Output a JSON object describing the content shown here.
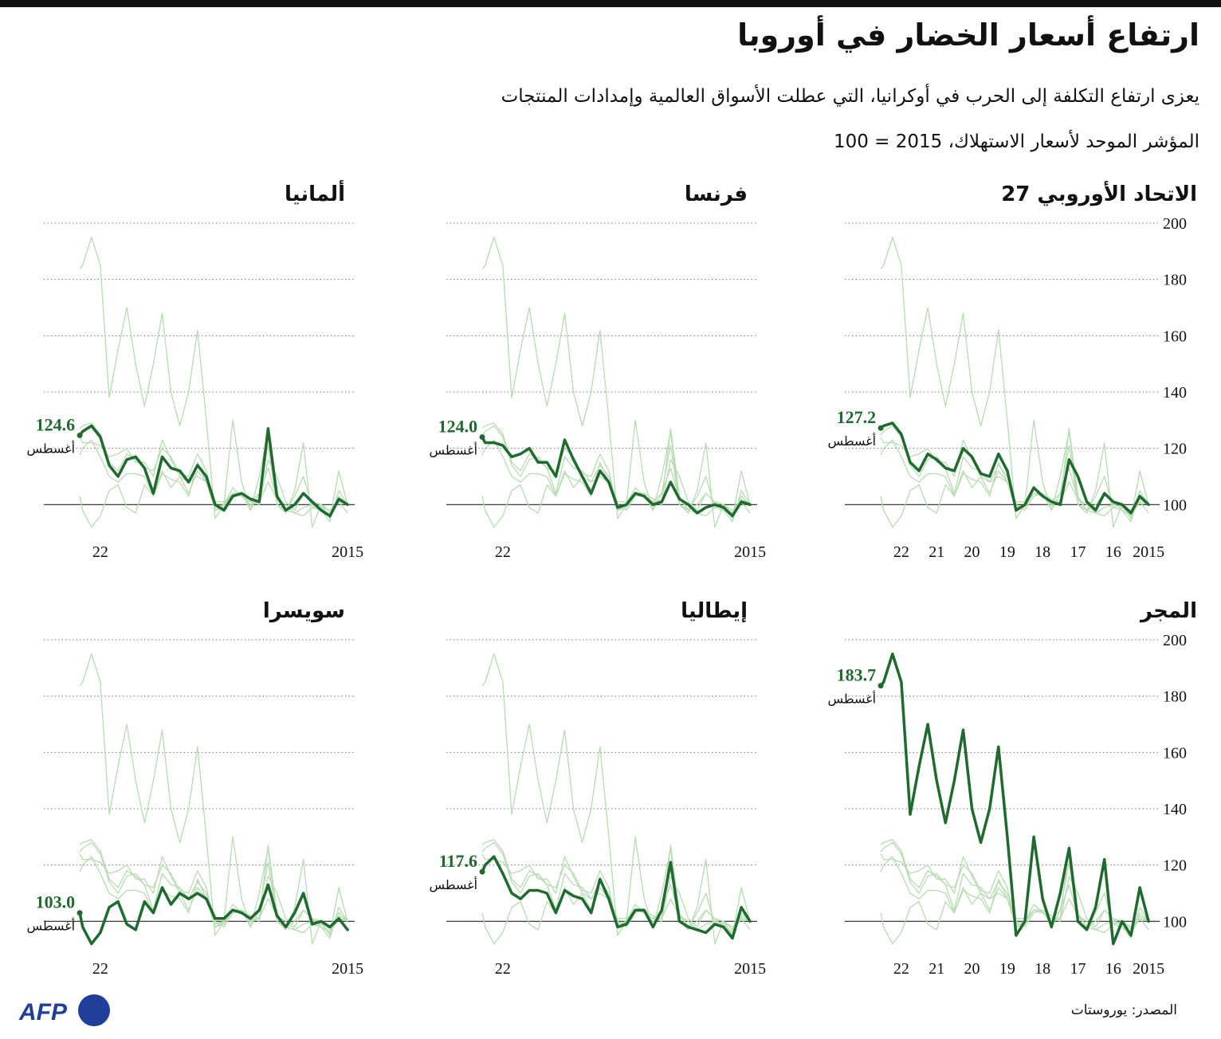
{
  "title": "ارتفاع أسعار الخضار في أوروبا",
  "subtitle": "يعزى ارتفاع التكلفة إلى الحرب في أوكرانيا، التي عطلت الأسواق العالمية وإمدادات المنتجات",
  "note": "المؤشر الموحد لأسعار الاستهلاك، 2015 = 100",
  "source": "المصدر: يوروستات",
  "logo": "AFP",
  "chart_data": [
    {
      "type": "line",
      "title": "الاتحاد الأوروبي 27",
      "color": "#1f6b2f",
      "context_color": "#b7dcb2",
      "x": [
        2015,
        2015.25,
        2015.5,
        2015.75,
        2016,
        2016.25,
        2016.5,
        2016.75,
        2017,
        2017.25,
        2017.5,
        2017.75,
        2018,
        2018.25,
        2018.5,
        2018.75,
        2019,
        2019.25,
        2019.5,
        2019.75,
        2020,
        2020.25,
        2020.5,
        2020.75,
        2021,
        2021.25,
        2021.5,
        2021.75,
        2022,
        2022.25,
        2022.5,
        2022.583
      ],
      "values": [
        100,
        103,
        97,
        100,
        101,
        104,
        98,
        101,
        110,
        116,
        100,
        101,
        103,
        106,
        100,
        98,
        112,
        118,
        110,
        111,
        117,
        120,
        112,
        113,
        116,
        118,
        112,
        115,
        125,
        129,
        128,
        127.2
      ],
      "end_label": "127.2",
      "end_month": "أغسطس",
      "xlim": [
        2014.8,
        2023.6
      ],
      "ylim": [
        80,
        200
      ],
      "yticks": [
        100,
        120,
        140,
        160,
        180,
        200
      ],
      "show_yticks": true,
      "xticks": [
        2015,
        {
          "value": 2016,
          "label": "16"
        },
        {
          "value": 2017,
          "label": "17"
        },
        {
          "value": 2018,
          "label": "18"
        },
        {
          "value": 2019,
          "label": "19"
        },
        {
          "value": 2020,
          "label": "20"
        },
        {
          "value": 2021,
          "label": "21"
        },
        {
          "value": 2022,
          "label": "22"
        }
      ]
    },
    {
      "type": "line",
      "title": "فرنسا",
      "color": "#1f6b2f",
      "context_color": "#b7dcb2",
      "x": [
        2015,
        2015.25,
        2015.5,
        2015.75,
        2016,
        2016.25,
        2016.5,
        2016.75,
        2017,
        2017.25,
        2017.5,
        2017.75,
        2018,
        2018.25,
        2018.5,
        2018.75,
        2019,
        2019.25,
        2019.5,
        2019.75,
        2020,
        2020.25,
        2020.5,
        2020.75,
        2021,
        2021.25,
        2021.5,
        2021.75,
        2022,
        2022.25,
        2022.5,
        2022.583
      ],
      "values": [
        100,
        101,
        96,
        99,
        100,
        99,
        97,
        100,
        102,
        108,
        101,
        100,
        103,
        104,
        100,
        99,
        108,
        112,
        104,
        110,
        116,
        123,
        110,
        115,
        115,
        120,
        118,
        117,
        121,
        122,
        122,
        124
      ],
      "end_label": "124.0",
      "end_month": "أغسطس",
      "xlim": [
        2014.8,
        2023.6
      ],
      "ylim": [
        80,
        200
      ],
      "yticks": [
        100,
        120,
        140,
        160,
        180,
        200
      ],
      "show_yticks": false,
      "xticks": [
        2015,
        {
          "value": 2022,
          "label": "22"
        }
      ]
    },
    {
      "type": "line",
      "title": "ألمانيا",
      "color": "#1f6b2f",
      "context_color": "#b7dcb2",
      "x": [
        2015,
        2015.25,
        2015.5,
        2015.75,
        2016,
        2016.25,
        2016.5,
        2016.75,
        2017,
        2017.25,
        2017.5,
        2017.75,
        2018,
        2018.25,
        2018.5,
        2018.75,
        2019,
        2019.25,
        2019.5,
        2019.75,
        2020,
        2020.25,
        2020.5,
        2020.75,
        2021,
        2021.25,
        2021.5,
        2021.75,
        2022,
        2022.25,
        2022.5,
        2022.583
      ],
      "values": [
        100,
        102,
        96,
        98,
        101,
        104,
        100,
        98,
        103,
        127,
        101,
        102,
        104,
        103,
        98,
        100,
        110,
        114,
        108,
        112,
        113,
        117,
        104,
        113,
        117,
        116,
        110,
        114,
        124,
        128,
        126,
        124.6
      ],
      "end_label": "124.6",
      "end_month": "أغسطس",
      "xlim": [
        2014.8,
        2023.6
      ],
      "ylim": [
        80,
        200
      ],
      "yticks": [
        100,
        120,
        140,
        160,
        180,
        200
      ],
      "show_yticks": false,
      "xticks": [
        2015,
        {
          "value": 2022,
          "label": "22"
        }
      ]
    },
    {
      "type": "line",
      "title": "المجر",
      "color": "#1f6b2f",
      "context_color": "#b7dcb2",
      "x": [
        2015,
        2015.25,
        2015.5,
        2015.75,
        2016,
        2016.25,
        2016.5,
        2016.75,
        2017,
        2017.25,
        2017.5,
        2017.75,
        2018,
        2018.25,
        2018.5,
        2018.75,
        2019,
        2019.25,
        2019.5,
        2019.75,
        2020,
        2020.25,
        2020.5,
        2020.75,
        2021,
        2021.25,
        2021.5,
        2021.75,
        2022,
        2022.25,
        2022.5,
        2022.583
      ],
      "values": [
        100,
        112,
        95,
        100,
        92,
        122,
        105,
        97,
        100,
        126,
        110,
        98,
        108,
        130,
        100,
        95,
        130,
        162,
        140,
        128,
        140,
        168,
        150,
        135,
        150,
        170,
        155,
        138,
        185,
        195,
        185,
        183.7
      ],
      "end_label": "183.7",
      "end_month": "أغسطس",
      "xlim": [
        2014.8,
        2023.6
      ],
      "ylim": [
        80,
        200
      ],
      "yticks": [
        100,
        120,
        140,
        160,
        180,
        200
      ],
      "show_yticks": true,
      "xticks": [
        2015,
        {
          "value": 2016,
          "label": "16"
        },
        {
          "value": 2017,
          "label": "17"
        },
        {
          "value": 2018,
          "label": "18"
        },
        {
          "value": 2019,
          "label": "19"
        },
        {
          "value": 2020,
          "label": "20"
        },
        {
          "value": 2021,
          "label": "21"
        },
        {
          "value": 2022,
          "label": "22"
        }
      ]
    },
    {
      "type": "line",
      "title": "إيطاليا",
      "color": "#1f6b2f",
      "context_color": "#b7dcb2",
      "x": [
        2015,
        2015.25,
        2015.5,
        2015.75,
        2016,
        2016.25,
        2016.5,
        2016.75,
        2017,
        2017.25,
        2017.5,
        2017.75,
        2018,
        2018.25,
        2018.5,
        2018.75,
        2019,
        2019.25,
        2019.5,
        2019.75,
        2020,
        2020.25,
        2020.5,
        2020.75,
        2021,
        2021.25,
        2021.5,
        2021.75,
        2022,
        2022.25,
        2022.5,
        2022.583
      ],
      "values": [
        100,
        105,
        94,
        98,
        99,
        96,
        97,
        98,
        100,
        121,
        104,
        98,
        104,
        104,
        99,
        98,
        108,
        115,
        103,
        108,
        109,
        111,
        103,
        110,
        111,
        111,
        108,
        110,
        117,
        123,
        120,
        117.6
      ],
      "end_label": "117.6",
      "end_month": "أغسطس",
      "xlim": [
        2014.8,
        2023.6
      ],
      "ylim": [
        80,
        200
      ],
      "yticks": [
        100,
        120,
        140,
        160,
        180,
        200
      ],
      "show_yticks": false,
      "xticks": [
        2015,
        {
          "value": 2022,
          "label": "22"
        }
      ]
    },
    {
      "type": "line",
      "title": "سويسرا",
      "color": "#1f6b2f",
      "context_color": "#b7dcb2",
      "x": [
        2015,
        2015.25,
        2015.5,
        2015.75,
        2016,
        2016.25,
        2016.5,
        2016.75,
        2017,
        2017.25,
        2017.5,
        2017.75,
        2018,
        2018.25,
        2018.5,
        2018.75,
        2019,
        2019.25,
        2019.5,
        2019.75,
        2020,
        2020.25,
        2020.5,
        2020.75,
        2021,
        2021.25,
        2021.5,
        2021.75,
        2022,
        2022.25,
        2022.5,
        2022.583
      ],
      "values": [
        97,
        101,
        98,
        100,
        99,
        110,
        103,
        98,
        102,
        113,
        104,
        101,
        103,
        104,
        101,
        101,
        108,
        110,
        108,
        110,
        106,
        112,
        103,
        107,
        97,
        99,
        107,
        105,
        96,
        92,
        98,
        103
      ],
      "end_label": "103.0",
      "end_month": "أغسطس",
      "xlim": [
        2014.8,
        2023.6
      ],
      "ylim": [
        80,
        200
      ],
      "yticks": [
        100,
        120,
        140,
        160,
        180,
        200
      ],
      "show_yticks": false,
      "xticks": [
        2015,
        {
          "value": 2022,
          "label": "22"
        }
      ]
    }
  ]
}
